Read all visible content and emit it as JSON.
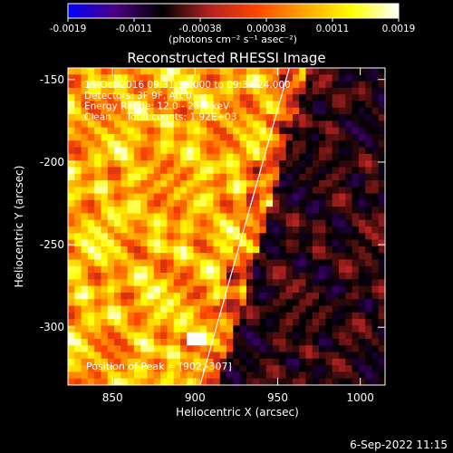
{
  "colorbar": {
    "ticks": [
      "-0.0019",
      "-0.0011",
      "-0.00038",
      "0.00038",
      "0.0011",
      "0.0019"
    ],
    "units": "(photons cm⁻² s⁻¹ asec⁻²)"
  },
  "chart_data": {
    "type": "heatmap",
    "title": "Reconstructed RHESSI Image",
    "xlabel": "Heliocentric X (arcsec)",
    "ylabel": "Heliocentric Y (arcsec)",
    "xlim": [
      823,
      1015
    ],
    "ylim": [
      -335,
      -143
    ],
    "x_ticks": [
      "850",
      "900",
      "950",
      "1000"
    ],
    "y_ticks": [
      "-150",
      "-200",
      "-250",
      "-300"
    ],
    "value_range": [
      -0.0019,
      0.0019
    ],
    "colormap": [
      "#0000ff",
      "#4b0082",
      "#000000",
      "#b22222",
      "#ff4500",
      "#ffa500",
      "#ffff00",
      "#ffffff"
    ],
    "annotations": [
      "15-Oct-2016 09:31:36.000 to 09:34:24.000",
      "Detectors: 3F 9F, Att 0",
      "Energy Range: 12.0 - 25.0 keV",
      "Clean     Total counts: 1.92E+03"
    ],
    "peak_label": "Position of Peak = [902,-307]",
    "peak": [
      902,
      -307
    ],
    "limb_line": [
      [
        903,
        -335
      ],
      [
        957,
        -143
      ]
    ]
  },
  "timestamp": "6-Sep-2022 11:15"
}
